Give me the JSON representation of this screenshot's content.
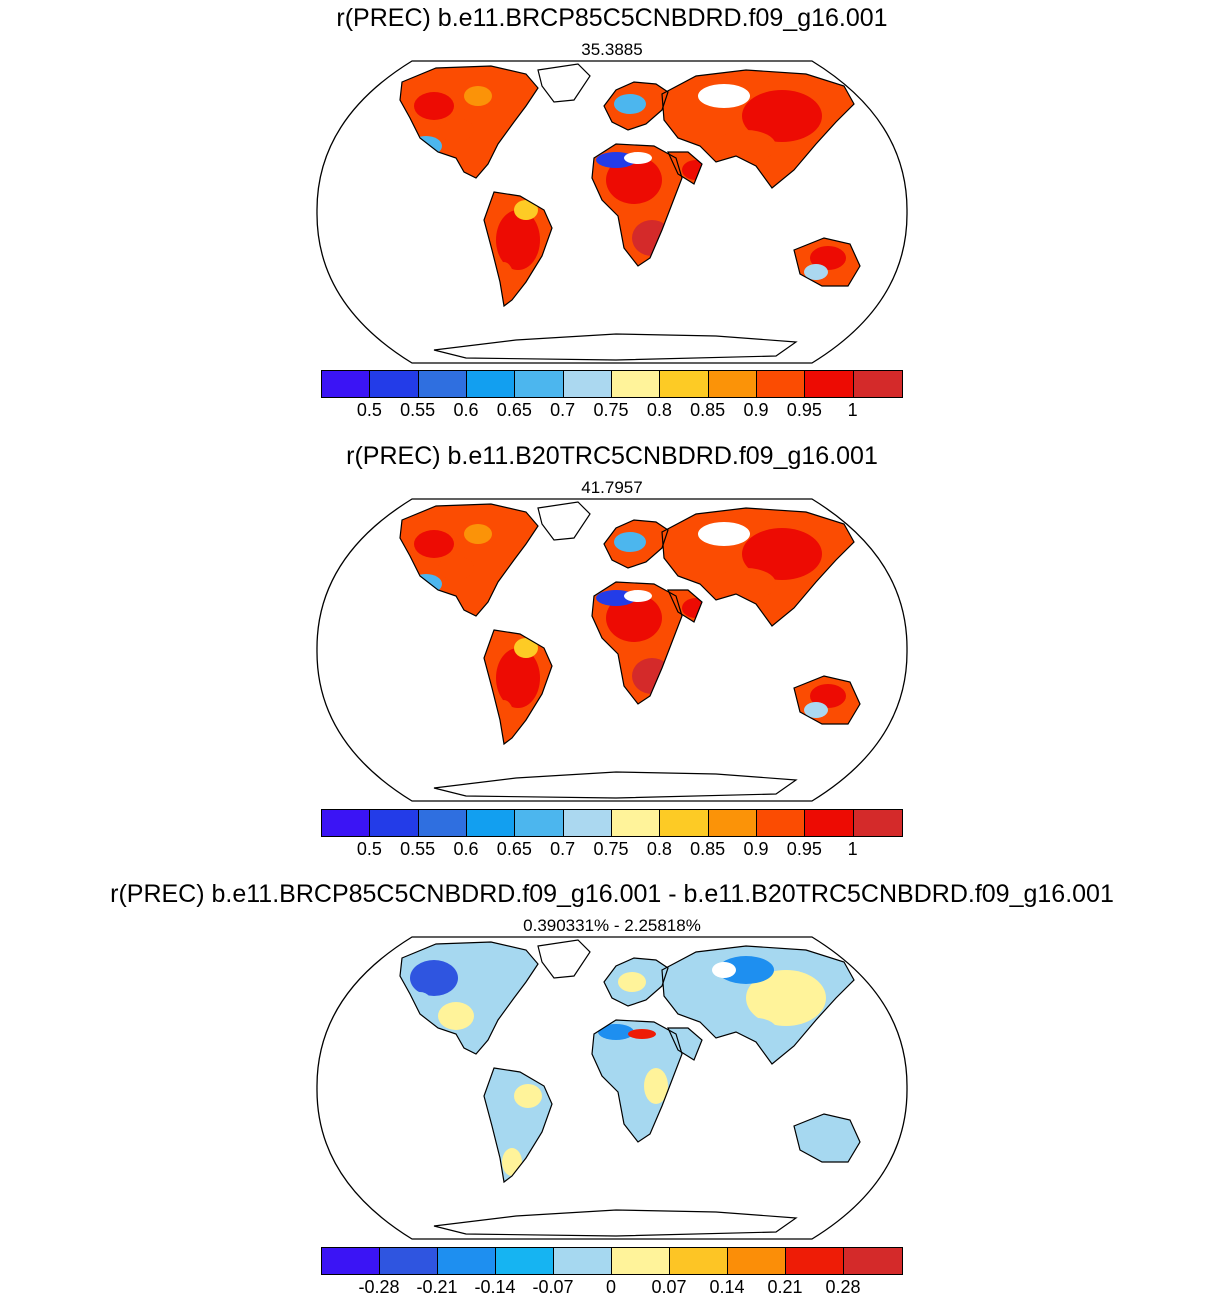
{
  "panels": [
    {
      "title": "r(PREC) b.e11.BRCP85C5CNBDRD.f09_g16.001",
      "subtitle": "35.3885",
      "colorbar": {
        "colors": [
          "#3b14f5",
          "#233ce8",
          "#2f6fe0",
          "#129ff0",
          "#4cb6ee",
          "#abd8f0",
          "#fff39a",
          "#fdcb25",
          "#fb9308",
          "#fb4c02",
          "#ed0b03",
          "#d42a2a"
        ],
        "labels": [
          "0.5",
          "0.55",
          "0.6",
          "0.65",
          "0.7",
          "0.75",
          "0.8",
          "0.85",
          "0.9",
          "0.95",
          "1"
        ]
      },
      "palette": "warm"
    },
    {
      "title": "r(PREC) b.e11.B20TRC5CNBDRD.f09_g16.001",
      "subtitle": "41.7957",
      "colorbar": {
        "colors": [
          "#3b14f5",
          "#233ce8",
          "#2f6fe0",
          "#129ff0",
          "#4cb6ee",
          "#abd8f0",
          "#fff39a",
          "#fdcb25",
          "#fb9308",
          "#fb4c02",
          "#ed0b03",
          "#d42a2a"
        ],
        "labels": [
          "0.5",
          "0.55",
          "0.6",
          "0.65",
          "0.7",
          "0.75",
          "0.8",
          "0.85",
          "0.9",
          "0.95",
          "1"
        ]
      },
      "palette": "warm"
    },
    {
      "title": "r(PREC) b.e11.BRCP85C5CNBDRD.f09_g16.001 - b.e11.B20TRC5CNBDRD.f09_g16.001",
      "subtitle": "0.390331% - 2.25818%",
      "colorbar": {
        "colors": [
          "#3b14f5",
          "#2f55e0",
          "#1e8ff0",
          "#16b4f2",
          "#a6d8f0",
          "#fff39a",
          "#fdc525",
          "#fb8e08",
          "#ee1c06",
          "#d42a2a"
        ],
        "labels": [
          "-0.28",
          "-0.21",
          "-0.14",
          "-0.07",
          "0",
          "0.07",
          "0.14",
          "0.21",
          "0.28"
        ]
      },
      "palette": "diff"
    }
  ]
}
